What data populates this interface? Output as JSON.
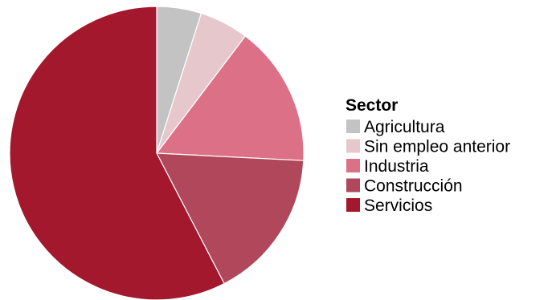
{
  "chart_data": {
    "type": "pie",
    "legend": {
      "title": "Sector",
      "placement": "right"
    },
    "slices": [
      {
        "label": "Agricultura",
        "value": 4.9,
        "color": "#c3c3c3"
      },
      {
        "label": "Sin empleo anterior",
        "value": 5.4,
        "color": "#e6c8cc"
      },
      {
        "label": "Industria",
        "value": 15.5,
        "color": "#dc7087"
      },
      {
        "label": "Construcción",
        "value": 16.6,
        "color": "#b0475a"
      },
      {
        "label": "Servicios",
        "value": 57.6,
        "color": "#a4182d"
      }
    ],
    "start_angle_deg": 0,
    "direction": "clockwise"
  }
}
